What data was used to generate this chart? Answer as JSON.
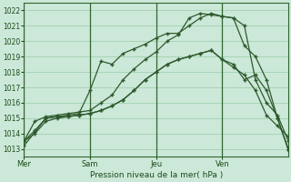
{
  "title": "",
  "xlabel": "Pression niveau de la mer( hPa )",
  "ylabel": "",
  "bg_color": "#cce8d8",
  "plot_bg_color": "#cce8d8",
  "grid_color": "#99ccaa",
  "line_color": "#2d5a2d",
  "ylim": [
    1012.5,
    1022.5
  ],
  "yticks": [
    1013,
    1014,
    1015,
    1016,
    1017,
    1018,
    1019,
    1020,
    1021,
    1022
  ],
  "xtick_positions": [
    0,
    6,
    12,
    18
  ],
  "xtick_labels": [
    "Mer",
    "Sam",
    "Jeu",
    "Ven"
  ],
  "vline_positions": [
    0,
    6,
    12,
    18
  ],
  "num_points": 25,
  "series": [
    [
      1013.2,
      1014.1,
      1015.0,
      1015.1,
      1015.1,
      1015.2,
      1015.3,
      1015.5,
      1015.8,
      1016.2,
      1016.8,
      1017.5,
      1018.0,
      1018.5,
      1018.8,
      1019.0,
      1019.2,
      1019.4,
      1018.8,
      1018.5,
      1017.5,
      1017.8,
      1016.8,
      1015.0,
      1012.9
    ],
    [
      1013.5,
      1014.2,
      1015.0,
      1015.1,
      1015.2,
      1015.3,
      1016.8,
      1018.7,
      1018.5,
      1019.2,
      1019.5,
      1019.8,
      1020.2,
      1020.5,
      1020.5,
      1021.0,
      1021.5,
      1021.8,
      1021.6,
      1021.5,
      1019.7,
      1019.0,
      1017.5,
      1015.0,
      1013.0
    ],
    [
      1013.5,
      1014.8,
      1015.1,
      1015.2,
      1015.3,
      1015.4,
      1015.5,
      1016.0,
      1016.5,
      1017.5,
      1018.2,
      1018.8,
      1019.3,
      1020.0,
      1020.4,
      1021.5,
      1021.8,
      1021.7,
      1021.6,
      1021.5,
      1021.0,
      1017.5,
      1016.0,
      1015.2,
      1013.5
    ],
    [
      1013.5,
      1014.0,
      1014.8,
      1015.0,
      1015.1,
      1015.2,
      1015.3,
      1015.5,
      1015.8,
      1016.2,
      1016.8,
      1017.5,
      1018.0,
      1018.5,
      1018.8,
      1019.0,
      1019.2,
      1019.4,
      1018.8,
      1018.3,
      1017.8,
      1016.8,
      1015.2,
      1014.5,
      1013.8
    ]
  ]
}
